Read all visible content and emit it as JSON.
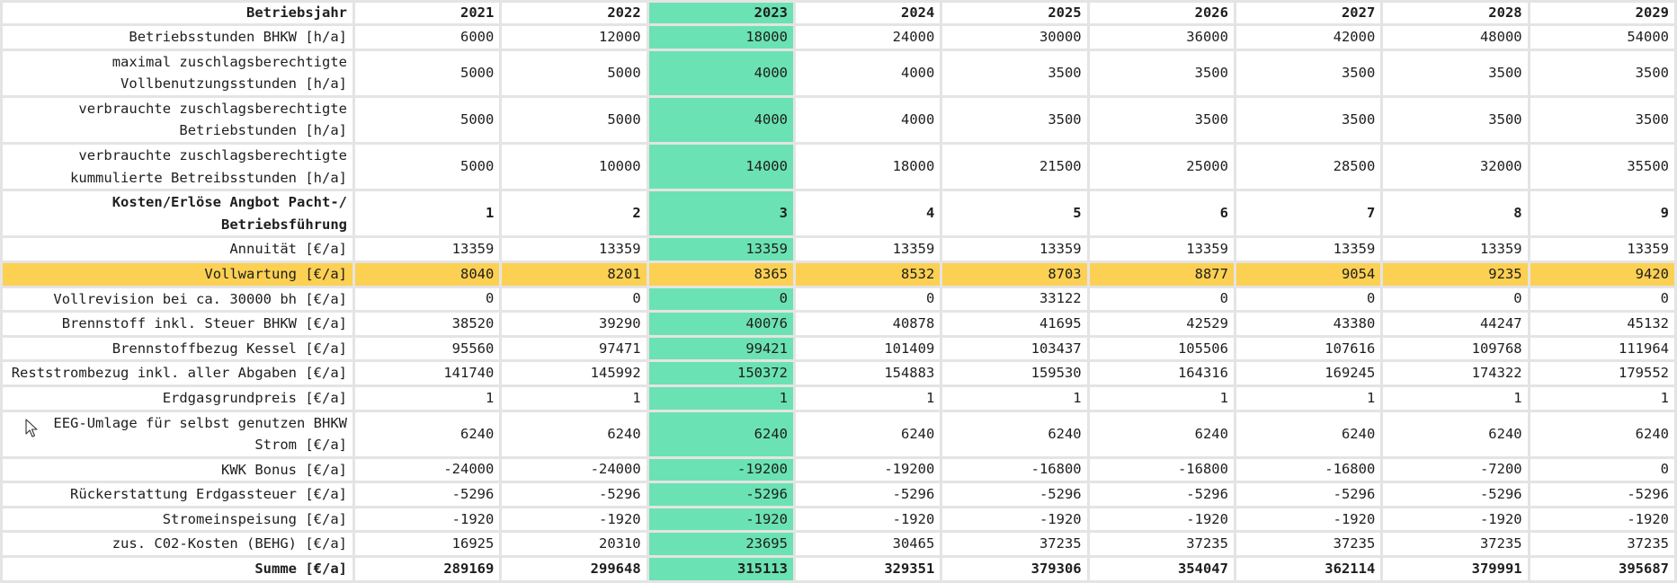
{
  "header": {
    "label": "Betriebsjahr",
    "values": [
      "2021",
      "2022",
      "2023",
      "2024",
      "2025",
      "2026",
      "2027",
      "2028",
      "2029"
    ]
  },
  "rows": [
    {
      "label": "Betriebsstunden BHKW [h/a]",
      "values": [
        "6000",
        "12000",
        "18000",
        "24000",
        "30000",
        "36000",
        "42000",
        "48000",
        "54000"
      ]
    },
    {
      "label": "maximal zuschlagsberechtigte Vollbenutzungsstunden [h/a]",
      "values": [
        "5000",
        "5000",
        "4000",
        "4000",
        "3500",
        "3500",
        "3500",
        "3500",
        "3500"
      ]
    },
    {
      "label": "verbrauchte zuschlagsberechtigte Betriebstunden [h/a]",
      "values": [
        "5000",
        "5000",
        "4000",
        "4000",
        "3500",
        "3500",
        "3500",
        "3500",
        "3500"
      ]
    },
    {
      "label": "verbrauchte zuschlagsberechtigte kummulierte Betreibsstunden [h/a]",
      "values": [
        "5000",
        "10000",
        "14000",
        "18000",
        "21500",
        "25000",
        "28500",
        "32000",
        "35500"
      ]
    },
    {
      "label": "Kosten/Erlöse Angbot Pacht-/ Betriebsführung",
      "values": [
        "1",
        "2",
        "3",
        "4",
        "5",
        "6",
        "7",
        "8",
        "9"
      ]
    },
    {
      "label": "Annuität [€/a]",
      "values": [
        "13359",
        "13359",
        "13359",
        "13359",
        "13359",
        "13359",
        "13359",
        "13359",
        "13359"
      ]
    },
    {
      "label": "Vollwartung [€/a]",
      "values": [
        "8040",
        "8201",
        "8365",
        "8532",
        "8703",
        "8877",
        "9054",
        "9235",
        "9420"
      ]
    },
    {
      "label": "Vollrevision bei ca. 30000 bh [€/a]",
      "values": [
        "0",
        "0",
        "0",
        "0",
        "33122",
        "0",
        "0",
        "0",
        "0"
      ]
    },
    {
      "label": "Brennstoff inkl. Steuer BHKW [€/a]",
      "values": [
        "38520",
        "39290",
        "40076",
        "40878",
        "41695",
        "42529",
        "43380",
        "44247",
        "45132"
      ]
    },
    {
      "label": "Brennstoffbezug Kessel [€/a]",
      "values": [
        "95560",
        "97471",
        "99421",
        "101409",
        "103437",
        "105506",
        "107616",
        "109768",
        "111964"
      ]
    },
    {
      "label": "Reststrombezug inkl. aller Abgaben [€/a]",
      "values": [
        "141740",
        "145992",
        "150372",
        "154883",
        "159530",
        "164316",
        "169245",
        "174322",
        "179552"
      ]
    },
    {
      "label": "Erdgasgrundpreis [€/a]",
      "values": [
        "1",
        "1",
        "1",
        "1",
        "1",
        "1",
        "1",
        "1",
        "1"
      ]
    },
    {
      "label": "EEG-Umlage für selbst genutzen BHKW Strom [€/a]",
      "values": [
        "6240",
        "6240",
        "6240",
        "6240",
        "6240",
        "6240",
        "6240",
        "6240",
        "6240"
      ]
    },
    {
      "label": "KWK Bonus [€/a]",
      "values": [
        "-24000",
        "-24000",
        "-19200",
        "-19200",
        "-16800",
        "-16800",
        "-16800",
        "-7200",
        "0"
      ]
    },
    {
      "label": "Rückerstattung Erdgassteuer [€/a]",
      "values": [
        "-5296",
        "-5296",
        "-5296",
        "-5296",
        "-5296",
        "-5296",
        "-5296",
        "-5296",
        "-5296"
      ]
    },
    {
      "label": "Stromeinspeisung [€/a]",
      "values": [
        "-1920",
        "-1920",
        "-1920",
        "-1920",
        "-1920",
        "-1920",
        "-1920",
        "-1920",
        "-1920"
      ]
    },
    {
      "label": "zus. C02-Kosten (BEHG) [€/a]",
      "values": [
        "16925",
        "20310",
        "23695",
        "30465",
        "37235",
        "37235",
        "37235",
        "37235",
        "37235"
      ]
    },
    {
      "label": "Summe [€/a]",
      "values": [
        "289169",
        "299648",
        "315113",
        "329351",
        "379306",
        "354047",
        "362114",
        "379991",
        "395687"
      ]
    }
  ],
  "colors": {
    "selected_column": "#6be2b3",
    "highlighted_row": "#fcd053",
    "grid": "#e4e4e4"
  },
  "selected_column_index": 2,
  "highlighted_row_index": 6,
  "icons": {
    "pointer": "mouse-pointer-icon"
  }
}
